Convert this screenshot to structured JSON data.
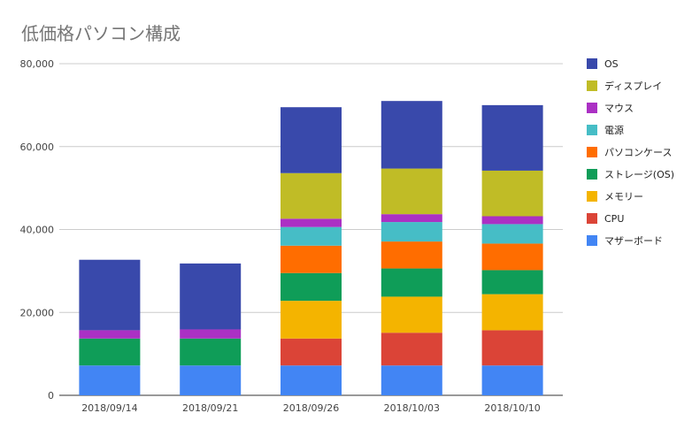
{
  "chart_data": {
    "type": "bar",
    "stacked": true,
    "title": "低価格パソコン構成",
    "xlabel": "",
    "ylabel": "",
    "ylim": [
      0,
      80000
    ],
    "yticks": [
      0,
      20000,
      40000,
      60000,
      80000
    ],
    "ytick_labels": [
      "0",
      "20,000",
      "40,000",
      "60,000",
      "80,000"
    ],
    "grid": true,
    "legend_position": "right",
    "categories": [
      "2018/09/14",
      "2018/09/21",
      "2018/09/26",
      "2018/10/03",
      "2018/10/10"
    ],
    "series": [
      {
        "name": "マザーボード",
        "color": "#4285F4",
        "values": [
          7200,
          7200,
          7200,
          7200,
          7200
        ]
      },
      {
        "name": "CPU",
        "color": "#DB4437",
        "values": [
          0,
          0,
          6500,
          7900,
          8500
        ]
      },
      {
        "name": "メモリー",
        "color": "#F4B400",
        "values": [
          0,
          0,
          9100,
          8700,
          8700
        ]
      },
      {
        "name": "ストレージ(OS)",
        "color": "#0F9D58",
        "values": [
          6500,
          6500,
          6700,
          6800,
          5800
        ]
      },
      {
        "name": "パソコンケース",
        "color": "#FF6D00",
        "values": [
          0,
          0,
          6600,
          6500,
          6400
        ]
      },
      {
        "name": "電源",
        "color": "#46BDC6",
        "values": [
          0,
          0,
          4500,
          4700,
          4700
        ]
      },
      {
        "name": "マウス",
        "color": "#AB30C4",
        "values": [
          2000,
          2200,
          2000,
          1900,
          1900
        ]
      },
      {
        "name": "ディスプレイ",
        "color": "#C0BC26",
        "values": [
          0,
          0,
          11000,
          11000,
          11000
        ]
      },
      {
        "name": "OS",
        "color": "#3949AB",
        "values": [
          17000,
          15900,
          15900,
          16300,
          15800
        ]
      }
    ]
  }
}
